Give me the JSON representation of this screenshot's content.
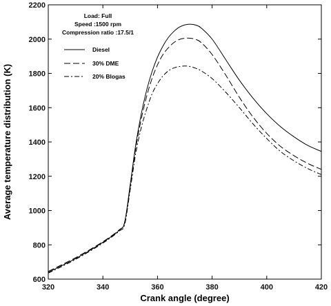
{
  "chart_data": {
    "type": "line",
    "title": "",
    "xlabel": "Crank angle (degree)",
    "ylabel": "Average temperature distribution (K)",
    "xlim": [
      320,
      420
    ],
    "ylim": [
      600,
      2200
    ],
    "xticks": [
      320,
      340,
      360,
      380,
      400,
      420
    ],
    "yticks": [
      600,
      800,
      1000,
      1200,
      1400,
      1600,
      1800,
      2000,
      2200
    ],
    "grid": false,
    "legend_position": "top-left",
    "annotations": [
      "Load: Full",
      "Speed :1500 rpm",
      "Compression ratio :17.5/1"
    ],
    "series": [
      {
        "name": "Diesel",
        "dash": "solid",
        "color": "#000000",
        "x": [
          320,
          330,
          340,
          346,
          348,
          350,
          352,
          354,
          356,
          358,
          360,
          362,
          364,
          366,
          368,
          370,
          372,
          374,
          376,
          380,
          385,
          390,
          395,
          400,
          405,
          410,
          415,
          420
        ],
        "y": [
          640,
          720,
          815,
          885,
          935,
          1150,
          1380,
          1560,
          1700,
          1810,
          1895,
          1960,
          2010,
          2045,
          2070,
          2083,
          2087,
          2082,
          2065,
          2000,
          1880,
          1760,
          1655,
          1565,
          1490,
          1430,
          1380,
          1345
        ]
      },
      {
        "name": "30%  DME",
        "dash": "long-dash",
        "color": "#000000",
        "x": [
          320,
          330,
          340,
          346,
          348,
          350,
          352,
          354,
          356,
          358,
          360,
          362,
          364,
          366,
          368,
          370,
          372,
          374,
          376,
          380,
          385,
          390,
          395,
          400,
          405,
          410,
          415,
          420
        ],
        "y": [
          645,
          725,
          818,
          888,
          930,
          1140,
          1360,
          1530,
          1665,
          1770,
          1850,
          1910,
          1950,
          1980,
          1998,
          2005,
          2005,
          1998,
          1980,
          1910,
          1790,
          1660,
          1545,
          1450,
          1375,
          1320,
          1275,
          1240
        ]
      },
      {
        "name": "20%  Blogas",
        "dash": "dash-dot",
        "color": "#000000",
        "x": [
          320,
          330,
          340,
          346,
          348,
          350,
          352,
          354,
          356,
          358,
          360,
          362,
          364,
          366,
          368,
          370,
          372,
          374,
          376,
          380,
          385,
          390,
          395,
          400,
          405,
          410,
          415,
          420
        ],
        "y": [
          635,
          715,
          810,
          880,
          920,
          1120,
          1330,
          1480,
          1590,
          1680,
          1740,
          1785,
          1815,
          1832,
          1840,
          1843,
          1840,
          1830,
          1815,
          1770,
          1690,
          1600,
          1505,
          1420,
          1345,
          1290,
          1245,
          1210
        ]
      }
    ]
  }
}
